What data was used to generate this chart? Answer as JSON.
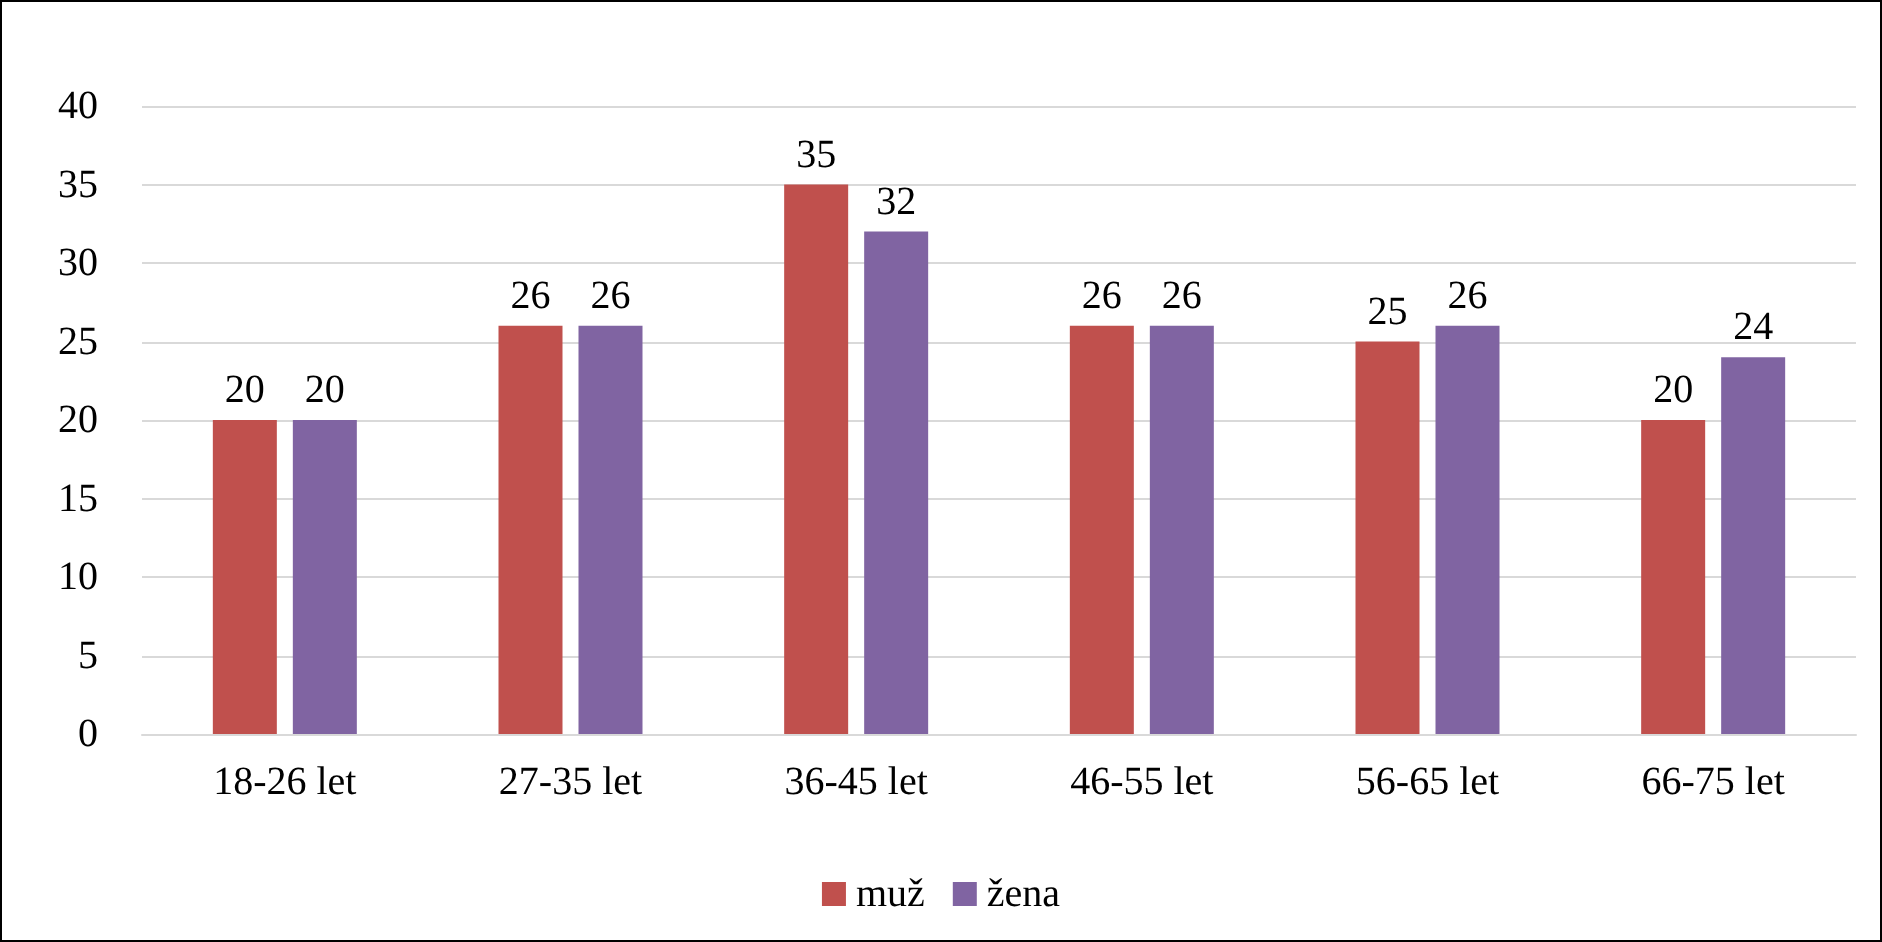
{
  "chart_data": {
    "type": "bar",
    "categories": [
      "18-26 let",
      "27-35 let",
      "36-45 let",
      "46-55 let",
      "56-65 let",
      "66-75 let"
    ],
    "series": [
      {
        "name": "muž",
        "color": "#c0504d",
        "values": [
          20,
          26,
          35,
          26,
          25,
          20
        ]
      },
      {
        "name": "žena",
        "color": "#8064a2",
        "values": [
          20,
          26,
          32,
          26,
          26,
          24
        ]
      }
    ],
    "ylim": [
      0,
      40
    ],
    "yticks": [
      0,
      5,
      10,
      15,
      20,
      25,
      30,
      35,
      40
    ],
    "grid": "y",
    "legend": "bottom",
    "data_labels": true
  }
}
